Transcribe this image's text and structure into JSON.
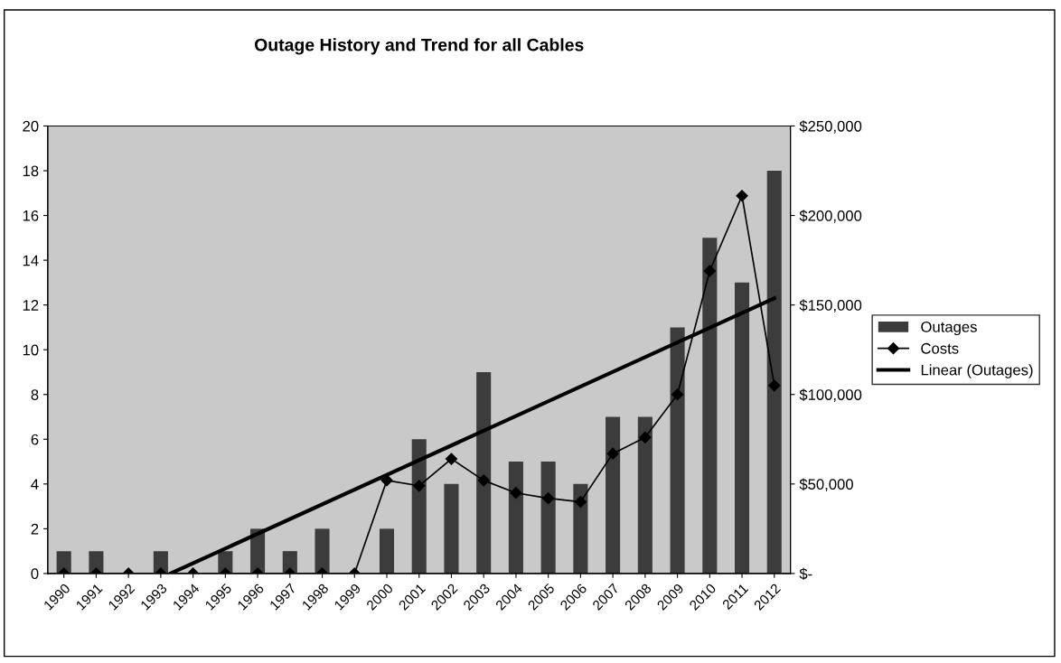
{
  "chart_data": {
    "type": "bar",
    "title": "Outage History and Trend for all Cables",
    "x": [
      1990,
      1991,
      1992,
      1993,
      1994,
      1995,
      1996,
      1997,
      1998,
      1999,
      2000,
      2001,
      2002,
      2003,
      2004,
      2005,
      2006,
      2007,
      2008,
      2009,
      2010,
      2011,
      2012
    ],
    "xlim": [
      1989.5,
      2012.5
    ],
    "xticks": [
      1990,
      1991,
      1992,
      1993,
      1994,
      1995,
      1996,
      1997,
      1998,
      1999,
      2000,
      2001,
      2002,
      2003,
      2004,
      2005,
      2006,
      2007,
      2008,
      2009,
      2010,
      2011,
      2012
    ],
    "ylim": [
      0,
      20
    ],
    "yticks": [
      0,
      2,
      4,
      6,
      8,
      10,
      12,
      14,
      16,
      18,
      20
    ],
    "y2lim": [
      0,
      250000
    ],
    "y2ticks": [
      {
        "value": 0,
        "label": "$-"
      },
      {
        "value": 50000,
        "label": "$50,000"
      },
      {
        "value": 100000,
        "label": "$100,000"
      },
      {
        "value": 150000,
        "label": "$150,000"
      },
      {
        "value": 200000,
        "label": "$200,000"
      },
      {
        "value": 250000,
        "label": "$250,000"
      }
    ],
    "series": [
      {
        "name": "Outages",
        "color": "#3c3c3c",
        "values": [
          1,
          1,
          0,
          1,
          0,
          1,
          2,
          1,
          2,
          0,
          2,
          6,
          4,
          9,
          5,
          5,
          4,
          7,
          7,
          11,
          15,
          13,
          18
        ]
      },
      {
        "name": "Costs",
        "type": "line",
        "axis": "y2",
        "color": "#000000",
        "marker": "diamond",
        "values": [
          0,
          0,
          0,
          0,
          0,
          0,
          0,
          0,
          0,
          0,
          52000,
          49000,
          64000,
          52000,
          45000,
          42000,
          40000,
          67000,
          76000,
          100000,
          169000,
          211000,
          105000
        ]
      },
      {
        "name": "Linear (Outages)",
        "type": "line",
        "color": "#000000",
        "marker": "none",
        "x": [
          1993.3,
          2012
        ],
        "values": [
          0,
          12.3
        ]
      }
    ],
    "grid": false,
    "legend": "right"
  }
}
